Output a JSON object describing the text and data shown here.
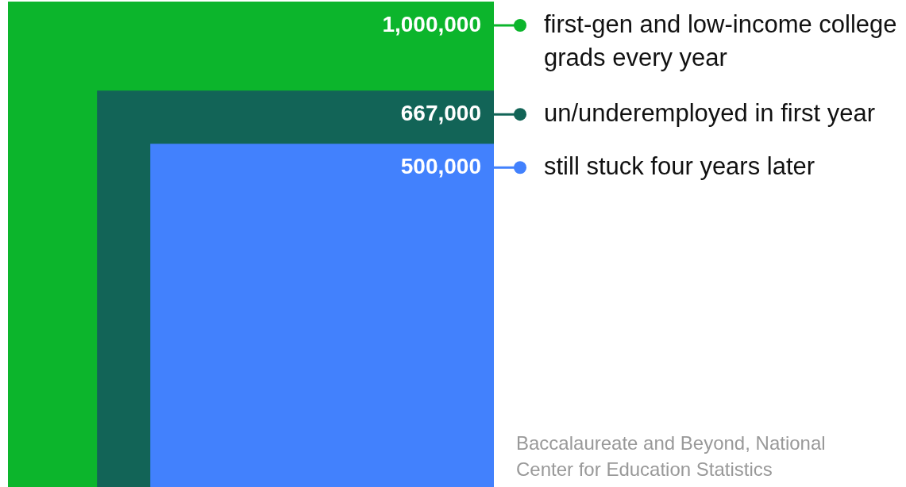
{
  "chart_data": {
    "type": "other",
    "categories": [
      "first-gen and low-income college grads every year",
      "un/underemployed in first year",
      "still stuck four years later"
    ],
    "values": [
      1000000,
      667000,
      500000
    ],
    "value_labels": [
      "1,000,000",
      "667,000",
      "500,000"
    ],
    "colors": [
      "#0cb52c",
      "#126457",
      "#4281fd"
    ],
    "annotations": [
      "Baccalaureate and Beyond, National Center for Education Statistics"
    ]
  }
}
